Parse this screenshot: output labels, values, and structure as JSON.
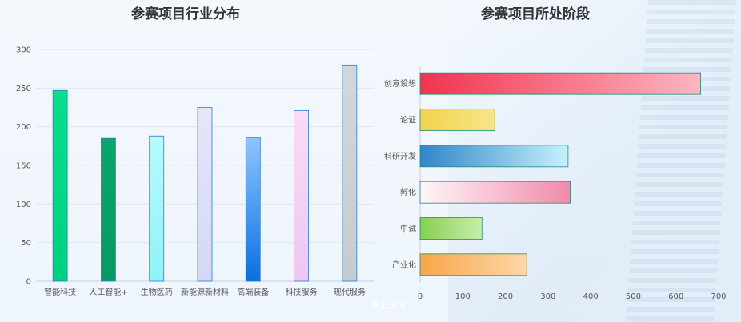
{
  "chart_data": [
    {
      "type": "bar",
      "title": "参赛项目行业分布",
      "categories": [
        "智能科技",
        "人工智能+",
        "生物医药",
        "新能源新材料",
        "高端装备",
        "科技服务",
        "现代服务"
      ],
      "values": [
        247,
        185,
        188,
        225,
        186,
        221,
        280
      ],
      "ylim": [
        0,
        300
      ],
      "yticks": [
        0,
        50,
        100,
        150,
        200,
        250,
        300
      ],
      "grid": true,
      "colors": [
        [
          "#06e089",
          "#00d080"
        ],
        [
          "#0aa56c",
          "#089a62"
        ],
        [
          "#b6fbff",
          "#8ff3f8"
        ],
        [
          "#e4e6fb",
          "#d4d8f6"
        ],
        [
          "#8ec5fc",
          "#0a6fe0"
        ],
        [
          "#f9dcf7",
          "#efc6f1"
        ],
        [
          "#d4d7d9",
          "#c8cbce"
        ]
      ]
    },
    {
      "type": "bar",
      "orientation": "horizontal",
      "title": "参赛项目所处阶段",
      "categories": [
        "创意设想",
        "论证",
        "科研开发",
        "孵化",
        "中试",
        "产业化"
      ],
      "values": [
        658,
        175,
        347,
        352,
        145,
        250
      ],
      "xlim": [
        0,
        700
      ],
      "xticks": [
        0,
        100,
        200,
        300,
        400,
        500,
        600,
        700
      ],
      "grid": false,
      "colors": [
        [
          "#f0344e",
          "#fcb6c2"
        ],
        [
          "#f2d24a",
          "#f7e58a"
        ],
        [
          "#2f86c9",
          "#c6f1fc"
        ],
        [
          "#fff6f8",
          "#f08aa8"
        ],
        [
          "#86cf52",
          "#c8eeaa"
        ],
        [
          "#f7a64a",
          "#fdd8a8"
        ]
      ]
    }
  ],
  "watermark": "© 掌上天津"
}
